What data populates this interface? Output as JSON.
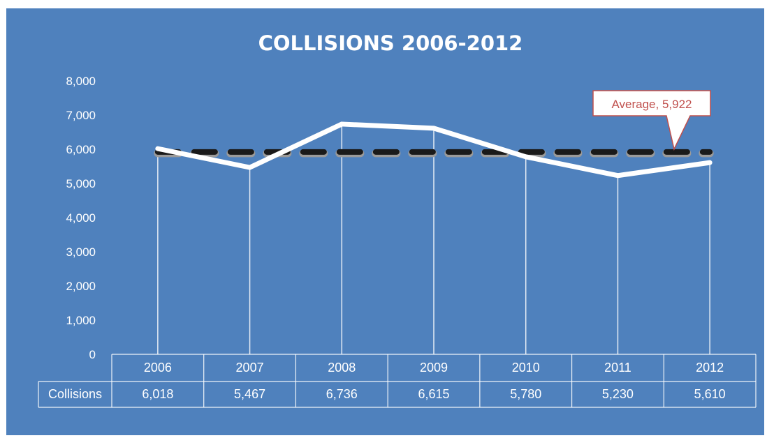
{
  "chart_data": {
    "type": "line",
    "title": "COLLISIONS  2006-2012",
    "categories": [
      "2006",
      "2007",
      "2008",
      "2009",
      "2010",
      "2011",
      "2012"
    ],
    "series": [
      {
        "name": "Collisions",
        "values": [
          6018,
          5467,
          6736,
          6615,
          5780,
          5230,
          5610
        ]
      }
    ],
    "table_values": [
      "6,018",
      "5,467",
      "6,736",
      "6,615",
      "5,780",
      "5,230",
      "5,610"
    ],
    "average": {
      "label": "Average, 5,922",
      "value": 5922
    },
    "ylim": [
      0,
      8000
    ],
    "yticks": [
      "0",
      "1,000",
      "2,000",
      "3,000",
      "4,000",
      "5,000",
      "6,000",
      "7,000",
      "8,000"
    ],
    "grid": false,
    "legend": "data table below plot",
    "colors": {
      "background": "#4f81bd",
      "line": "#ffffff",
      "average": "#1a1a1a",
      "callout_text": "#c0504d"
    }
  }
}
